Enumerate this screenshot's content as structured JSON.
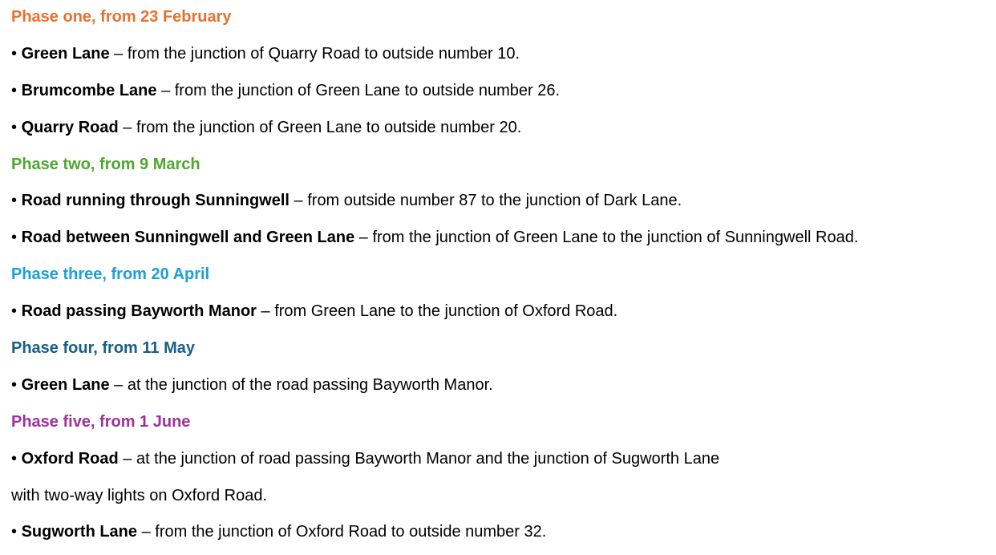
{
  "colors": {
    "phase1": "#E8702E",
    "phase2": "#4EA72E",
    "phase3": "#1AA0DA",
    "phase4": "#176085",
    "phase5": "#A0309C",
    "text": "#000000"
  },
  "lines": [
    {
      "type": "heading",
      "text": "Phase one, from 23 February",
      "color": "#E8702E"
    },
    {
      "type": "bullet",
      "bullet": "•",
      "bold": "Green Lane",
      "rest": " – from the junction of Quarry Road to outside number 10."
    },
    {
      "type": "bullet",
      "bullet": "•",
      "bold": "Brumcombe Lane",
      "rest": " – from the junction of Green Lane to outside number 26."
    },
    {
      "type": "bullet",
      "bullet": "•",
      "bold": "Quarry Road",
      "rest": " – from the junction of Green Lane to outside number 20."
    },
    {
      "type": "heading",
      "text": "Phase two, from 9 March",
      "color": "#4EA72E"
    },
    {
      "type": "bullet",
      "bullet": "•",
      "bold": "Road running through Sunningwell",
      "rest": " – from outside number 87 to the junction of Dark Lane."
    },
    {
      "type": "bullet",
      "bullet": "•",
      "bold": "Road between Sunningwell and Green Lane",
      "rest": " – from the junction of Green Lane to the junction of Sunningwell Road."
    },
    {
      "type": "heading",
      "text": "Phase three, from 20 April",
      "color": "#1AA0DA"
    },
    {
      "type": "bullet",
      "bullet": "•",
      "bold": "Road passing Bayworth Manor",
      "rest": " – from Green Lane to the junction of Oxford Road."
    },
    {
      "type": "heading",
      "text": "Phase four, from 11 May",
      "color": "#176085"
    },
    {
      "type": "bullet",
      "bullet": "•",
      "bold": "Green Lane",
      "rest": " – at the junction of the road passing Bayworth Manor."
    },
    {
      "type": "heading",
      "text": "Phase five, from 1 June",
      "color": "#A0309C"
    },
    {
      "type": "bullet",
      "bullet": "•",
      "bold": "Oxford Road",
      "rest": " – at the junction of road passing Bayworth Manor and the junction of Sugworth Lane"
    },
    {
      "type": "text",
      "text": "with two-way lights on Oxford Road."
    },
    {
      "type": "bullet",
      "bullet": "•",
      "bold": "Sugworth Lane",
      "rest": " – from the junction of Oxford Road to outside number 32."
    }
  ]
}
